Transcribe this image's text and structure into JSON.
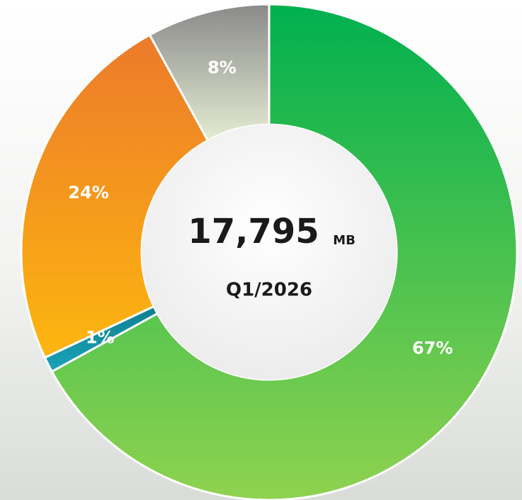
{
  "chart_data": {
    "type": "donut",
    "categories": [
      "67%",
      "1%",
      "24%",
      "8%"
    ],
    "values": [
      67,
      1,
      24,
      8
    ],
    "value_labels": [
      "67%",
      "1%",
      "24%",
      "8%"
    ],
    "colors": [
      [
        "#00b04f",
        "#8fd24f"
      ],
      [
        "#0f7f8f",
        "#1aa3b8"
      ],
      [
        "#ec7a2b",
        "#fdb60f"
      ],
      [
        "#8a8a8a",
        "#e4ecd2"
      ]
    ],
    "center_value": "17,795",
    "center_unit": "MB",
    "center_subtitle": "Q1/2026"
  }
}
